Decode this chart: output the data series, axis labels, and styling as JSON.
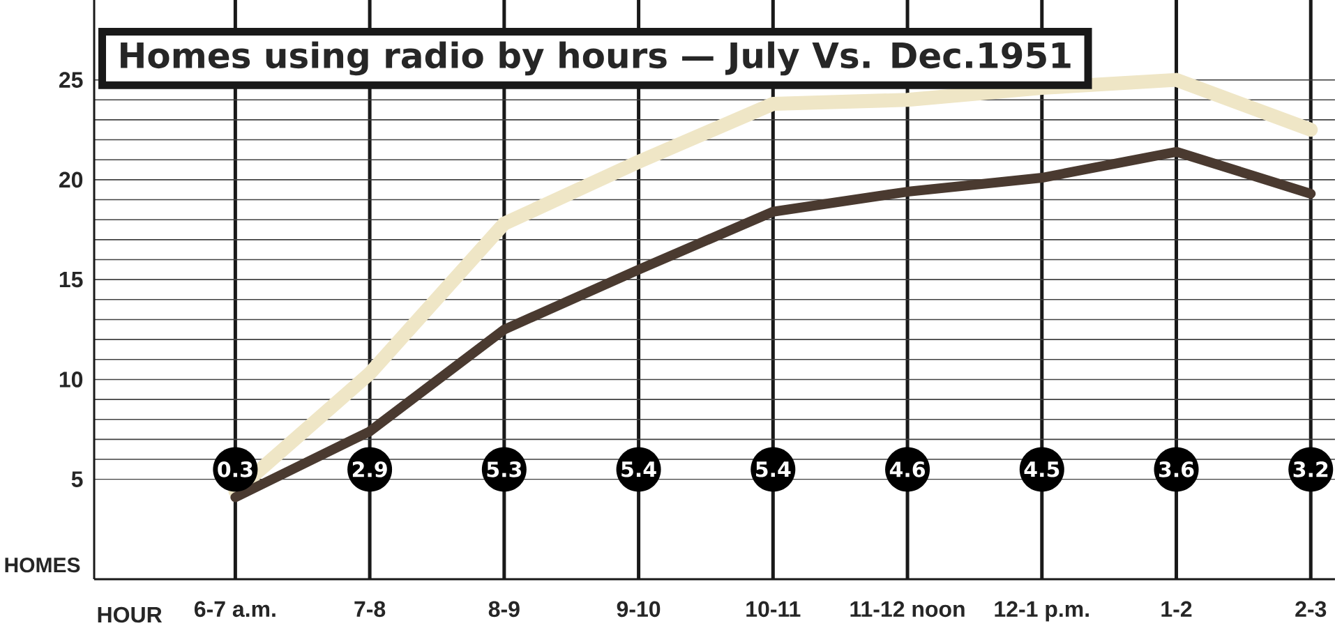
{
  "chart_data": {
    "type": "line",
    "title": "Homes using radio by hours — July Vs. Dec.1951",
    "xlabel": "HOUR",
    "ylabel": "HOMES",
    "categories": [
      "6-7 a.m.",
      "7-8",
      "8-9",
      "9-10",
      "10-11",
      "11-12 noon",
      "12-1 p.m.",
      "1-2",
      "2-3"
    ],
    "series": [
      {
        "color": "#efe6c6",
        "values": [
          4.4,
          10.3,
          17.8,
          20.9,
          23.8,
          24.0,
          24.6,
          25.0,
          22.5
        ]
      },
      {
        "color": "#4a3a30",
        "values": [
          4.1,
          7.4,
          12.5,
          15.5,
          18.4,
          19.4,
          20.1,
          21.4,
          19.3
        ]
      }
    ],
    "ylim": [
      0,
      29
    ],
    "yticks": [
      5,
      10,
      15,
      20,
      25
    ],
    "grid": true,
    "marker": "none",
    "line_style": "solid",
    "annotations": [
      "0.3",
      "2.9",
      "5.3",
      "5.4",
      "5.4",
      "4.6",
      "4.5",
      "3.6",
      "3.2"
    ]
  }
}
